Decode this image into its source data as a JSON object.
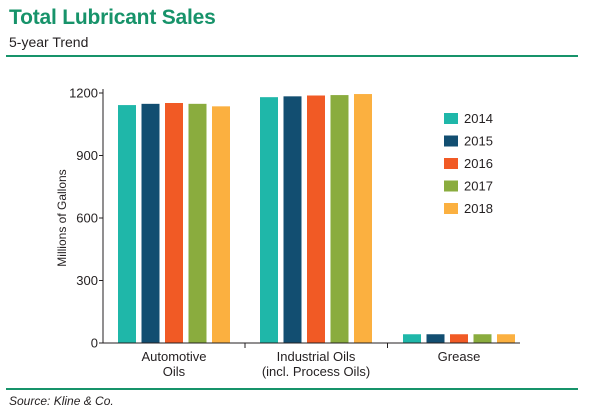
{
  "header": {
    "title": "Total Lubricant Sales",
    "subtitle": "5-year Trend"
  },
  "footer": {
    "source": "Source: Kline & Co."
  },
  "chart_data": {
    "type": "bar",
    "title": "Total Lubricant Sales",
    "subtitle": "5-year Trend",
    "xlabel": "",
    "ylabel": "Millions of Gallons",
    "ylim": [
      0,
      1200
    ],
    "yticks": [
      0,
      300,
      600,
      900,
      1200
    ],
    "grid": false,
    "legend_position": "right",
    "categories": [
      [
        "Automotive",
        "Oils"
      ],
      [
        "Industrial Oils",
        "(incl. Process Oils)"
      ],
      [
        "Grease"
      ]
    ],
    "series": [
      {
        "name": "2014",
        "color": "#1fb7a9",
        "values": [
          1142,
          1180,
          42
        ]
      },
      {
        "name": "2015",
        "color": "#124e71",
        "values": [
          1148,
          1184,
          42
        ]
      },
      {
        "name": "2016",
        "color": "#f15a25",
        "values": [
          1152,
          1188,
          42
        ]
      },
      {
        "name": "2017",
        "color": "#8aac3e",
        "values": [
          1148,
          1190,
          42
        ]
      },
      {
        "name": "2018",
        "color": "#fbb040",
        "values": [
          1136,
          1195,
          42
        ]
      }
    ]
  }
}
